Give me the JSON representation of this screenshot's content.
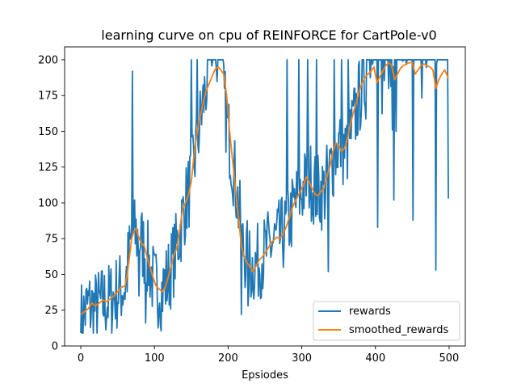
{
  "chart_data": {
    "type": "line",
    "title": "learning curve on cpu of REINFORCE for CartPole-v0",
    "xlabel": "Epsiodes",
    "ylabel": "",
    "xlim": [
      -22,
      522
    ],
    "ylim": [
      0,
      209
    ],
    "xticks": [
      0,
      100,
      200,
      300,
      400,
      500
    ],
    "yticks": [
      0,
      25,
      50,
      75,
      100,
      125,
      150,
      175,
      200
    ],
    "grid": false,
    "legend_position": "lower-right",
    "series": [
      {
        "name": "rewards",
        "color": "#1f77b4",
        "anchors": [
          [
            0,
            18
          ],
          [
            10,
            28
          ],
          [
            20,
            26
          ],
          [
            30,
            30
          ],
          [
            40,
            32
          ],
          [
            50,
            38
          ],
          [
            60,
            42
          ],
          [
            70,
            78
          ],
          [
            80,
            76
          ],
          [
            90,
            62
          ],
          [
            100,
            42
          ],
          [
            110,
            38
          ],
          [
            120,
            50
          ],
          [
            130,
            68
          ],
          [
            140,
            95
          ],
          [
            150,
            115
          ],
          [
            160,
            150
          ],
          [
            170,
            182
          ],
          [
            180,
            195
          ],
          [
            190,
            190
          ],
          [
            200,
            150
          ],
          [
            210,
            115
          ],
          [
            220,
            70
          ],
          [
            230,
            55
          ],
          [
            240,
            58
          ],
          [
            250,
            65
          ],
          [
            260,
            72
          ],
          [
            270,
            75
          ],
          [
            280,
            82
          ],
          [
            290,
            98
          ],
          [
            300,
            108
          ],
          [
            310,
            118
          ],
          [
            320,
            108
          ],
          [
            330,
            108
          ],
          [
            340,
            125
          ],
          [
            350,
            142
          ],
          [
            360,
            135
          ],
          [
            370,
            155
          ],
          [
            380,
            178
          ],
          [
            390,
            188
          ],
          [
            400,
            192
          ],
          [
            410,
            190
          ],
          [
            420,
            195
          ],
          [
            430,
            196
          ],
          [
            440,
            194
          ],
          [
            450,
            197
          ],
          [
            460,
            196
          ],
          [
            470,
            195
          ],
          [
            480,
            193
          ],
          [
            490,
            192
          ],
          [
            499,
            190
          ]
        ],
        "noise": 28,
        "seed": 7,
        "spikes": [
          [
            70,
            192
          ],
          [
            79,
            35
          ],
          [
            88,
            16
          ],
          [
            107,
            30
          ],
          [
            150,
            200
          ],
          [
            158,
            200
          ],
          [
            174,
            200
          ],
          [
            183,
            200
          ],
          [
            193,
            200
          ],
          [
            218,
            22
          ],
          [
            227,
            28
          ],
          [
            280,
            200
          ],
          [
            296,
            200
          ],
          [
            308,
            200
          ],
          [
            320,
            200
          ],
          [
            336,
            52
          ],
          [
            344,
            200
          ],
          [
            354,
            200
          ],
          [
            363,
            200
          ],
          [
            403,
            83
          ],
          [
            423,
            151
          ],
          [
            425,
            102
          ],
          [
            428,
            150
          ],
          [
            451,
            88
          ],
          [
            457,
            200
          ],
          [
            472,
            200
          ],
          [
            482,
            53
          ],
          [
            499,
            103
          ]
        ]
      },
      {
        "name": "smoothed_rewards",
        "color": "#ff7f0e",
        "points": [
          [
            0,
            22
          ],
          [
            5,
            24
          ],
          [
            10,
            26
          ],
          [
            15,
            30
          ],
          [
            20,
            28
          ],
          [
            25,
            30
          ],
          [
            30,
            32
          ],
          [
            35,
            31
          ],
          [
            40,
            33
          ],
          [
            45,
            35
          ],
          [
            50,
            38
          ],
          [
            55,
            41
          ],
          [
            60,
            42
          ],
          [
            63,
            50
          ],
          [
            66,
            62
          ],
          [
            69,
            75
          ],
          [
            72,
            80
          ],
          [
            75,
            82
          ],
          [
            78,
            77
          ],
          [
            82,
            72
          ],
          [
            86,
            70
          ],
          [
            90,
            62
          ],
          [
            94,
            55
          ],
          [
            98,
            48
          ],
          [
            102,
            42
          ],
          [
            106,
            40
          ],
          [
            110,
            38
          ],
          [
            114,
            40
          ],
          [
            118,
            47
          ],
          [
            122,
            55
          ],
          [
            126,
            63
          ],
          [
            130,
            68
          ],
          [
            134,
            80
          ],
          [
            138,
            95
          ],
          [
            142,
            100
          ],
          [
            146,
            105
          ],
          [
            150,
            115
          ],
          [
            154,
            135
          ],
          [
            158,
            150
          ],
          [
            162,
            160
          ],
          [
            166,
            170
          ],
          [
            170,
            178
          ],
          [
            174,
            183
          ],
          [
            178,
            188
          ],
          [
            182,
            193
          ],
          [
            186,
            195
          ],
          [
            190,
            193
          ],
          [
            194,
            190
          ],
          [
            198,
            175
          ],
          [
            202,
            150
          ],
          [
            206,
            130
          ],
          [
            210,
            110
          ],
          [
            214,
            90
          ],
          [
            218,
            70
          ],
          [
            222,
            62
          ],
          [
            226,
            58
          ],
          [
            230,
            55
          ],
          [
            234,
            52
          ],
          [
            238,
            56
          ],
          [
            242,
            60
          ],
          [
            246,
            62
          ],
          [
            250,
            65
          ],
          [
            254,
            68
          ],
          [
            258,
            72
          ],
          [
            262,
            74
          ],
          [
            266,
            76
          ],
          [
            270,
            75
          ],
          [
            274,
            78
          ],
          [
            278,
            82
          ],
          [
            282,
            88
          ],
          [
            286,
            95
          ],
          [
            290,
            100
          ],
          [
            294,
            104
          ],
          [
            298,
            108
          ],
          [
            302,
            112
          ],
          [
            306,
            118
          ],
          [
            310,
            115
          ],
          [
            314,
            110
          ],
          [
            318,
            106
          ],
          [
            322,
            105
          ],
          [
            326,
            108
          ],
          [
            330,
            110
          ],
          [
            334,
            118
          ],
          [
            338,
            125
          ],
          [
            342,
            135
          ],
          [
            346,
            142
          ],
          [
            350,
            140
          ],
          [
            354,
            136
          ],
          [
            358,
            138
          ],
          [
            362,
            145
          ],
          [
            366,
            155
          ],
          [
            370,
            163
          ],
          [
            374,
            170
          ],
          [
            378,
            178
          ],
          [
            382,
            184
          ],
          [
            386,
            188
          ],
          [
            390,
            190
          ],
          [
            394,
            192
          ],
          [
            398,
            195
          ],
          [
            402,
            184
          ],
          [
            406,
            188
          ],
          [
            410,
            192
          ],
          [
            414,
            196
          ],
          [
            418,
            198
          ],
          [
            422,
            196
          ],
          [
            426,
            186
          ],
          [
            430,
            190
          ],
          [
            434,
            194
          ],
          [
            438,
            196
          ],
          [
            442,
            197
          ],
          [
            446,
            198
          ],
          [
            450,
            198
          ],
          [
            454,
            190
          ],
          [
            458,
            193
          ],
          [
            462,
            196
          ],
          [
            466,
            197
          ],
          [
            470,
            196
          ],
          [
            474,
            195
          ],
          [
            478,
            193
          ],
          [
            482,
            180
          ],
          [
            486,
            186
          ],
          [
            490,
            190
          ],
          [
            494,
            193
          ],
          [
            499,
            187
          ]
        ]
      }
    ]
  }
}
